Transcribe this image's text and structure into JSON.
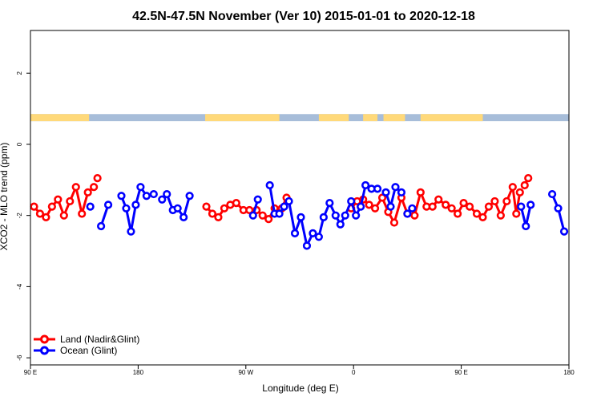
{
  "chart_data": {
    "type": "line",
    "title": "42.5N-47.5N November (Ver 10)   2015-01-01 to 2020-12-18",
    "xlabel": "Longitude (deg E)",
    "ylabel": "XCO2 - MLO trend (ppm)",
    "xlim": [
      90,
      540
    ],
    "ylim": [
      -6.2,
      3.2
    ],
    "xticks": [
      {
        "value": 90,
        "label": "90 E"
      },
      {
        "value": 180,
        "label": "180"
      },
      {
        "value": 270,
        "label": "90 W"
      },
      {
        "value": 360,
        "label": "0"
      },
      {
        "value": 450,
        "label": "90 E"
      },
      {
        "value": 540,
        "label": "180"
      }
    ],
    "yticks": [
      {
        "value": 2,
        "label": "2"
      },
      {
        "value": 0,
        "label": "0"
      },
      {
        "value": -2,
        "label": "-2"
      },
      {
        "value": -4,
        "label": "-4"
      },
      {
        "value": -6,
        "label": "-6"
      }
    ],
    "grid": false,
    "legend_position": "bottom-left",
    "land_mask_band": {
      "y_range": [
        0.65,
        0.85
      ],
      "land_color": "#FFD97A",
      "ocean_color": "#A7BDD9",
      "land_spans": [
        [
          90,
          139
        ],
        [
          236,
          298
        ],
        [
          331,
          356
        ],
        [
          368,
          380
        ],
        [
          385,
          403
        ],
        [
          416,
          468
        ]
      ]
    },
    "series": [
      {
        "name": "Land (Nadir&Glint)",
        "color": "#FF0000",
        "segments": [
          {
            "x": [
              93,
              98,
              103,
              108,
              113,
              118,
              123,
              128,
              133,
              138,
              143
            ],
            "y": [
              -1.75,
              -1.95,
              -2.05,
              -1.75,
              -1.55,
              -2.0,
              -1.6,
              -1.2,
              -1.95,
              -1.35,
              -1.2
            ]
          },
          {
            "x": [
              146
            ],
            "y": [
              -0.95
            ]
          },
          {
            "x": [
              237,
              242,
              247,
              252,
              257,
              262,
              268,
              273,
              279,
              284,
              289,
              294,
              300,
              304
            ],
            "y": [
              -1.75,
              -1.95,
              -2.05,
              -1.8,
              -1.7,
              -1.65,
              -1.85,
              -1.85,
              -1.85,
              -2.0,
              -2.1,
              -1.8,
              -1.8,
              -1.5
            ]
          },
          {
            "x": [
              358,
              363,
              368,
              373,
              378,
              384,
              389,
              394,
              400,
              405,
              411,
              416,
              421,
              426,
              431,
              437,
              442,
              447,
              452,
              457,
              463,
              468,
              473,
              478,
              483,
              488,
              493,
              496,
              499
            ],
            "y": [
              -1.8,
              -1.6,
              -1.55,
              -1.7,
              -1.8,
              -1.5,
              -1.9,
              -2.2,
              -1.5,
              -1.95,
              -2.0,
              -1.35,
              -1.75,
              -1.75,
              -1.55,
              -1.7,
              -1.8,
              -1.95,
              -1.65,
              -1.75,
              -1.95,
              -2.05,
              -1.75,
              -1.6,
              -2.0,
              -1.6,
              -1.2,
              -1.95,
              -1.35
            ]
          },
          {
            "x": [
              503,
              506
            ],
            "y": [
              -1.15,
              -0.95
            ]
          }
        ]
      },
      {
        "name": "Ocean (Glint)",
        "color": "#0000FF",
        "segments": [
          {
            "x": [
              140
            ],
            "y": [
              -1.75
            ]
          },
          {
            "x": [
              149,
              155
            ],
            "y": [
              -2.3,
              -1.7
            ]
          },
          {
            "x": [
              166,
              170,
              174,
              178,
              182,
              187,
              193
            ],
            "y": [
              -1.45,
              -1.8,
              -2.45,
              -1.7,
              -1.2,
              -1.45,
              -1.4
            ]
          },
          {
            "x": [
              200,
              204,
              209,
              213,
              218,
              223
            ],
            "y": [
              -1.55,
              -1.4,
              -1.85,
              -1.8,
              -2.05,
              -1.45
            ]
          },
          {
            "x": [
              276,
              280
            ],
            "y": [
              -2.0,
              -1.55
            ]
          },
          {
            "x": [
              290,
              294,
              298,
              302,
              306,
              311,
              316,
              321,
              326,
              331,
              335,
              340,
              345,
              349,
              353,
              358,
              362,
              366,
              370,
              375,
              380
            ],
            "y": [
              -1.15,
              -1.95,
              -1.95,
              -1.75,
              -1.6,
              -2.5,
              -2.05,
              -2.85,
              -2.5,
              -2.6,
              -2.05,
              -1.65,
              -2.0,
              -2.25,
              -2.0,
              -1.6,
              -2.0,
              -1.75,
              -1.15,
              -1.25,
              -1.25
            ]
          },
          {
            "x": [
              387,
              391,
              395,
              400
            ],
            "y": [
              -1.35,
              -1.75,
              -1.2,
              -1.35
            ]
          },
          {
            "x": [
              405,
              409
            ],
            "y": [
              -1.95,
              -1.8
            ]
          },
          {
            "x": [
              500,
              504,
              508
            ],
            "y": [
              -1.75,
              -2.3,
              -1.7
            ]
          },
          {
            "x": [
              526,
              531,
              536
            ],
            "y": [
              -1.4,
              -1.8,
              -2.45
            ]
          }
        ]
      }
    ]
  }
}
